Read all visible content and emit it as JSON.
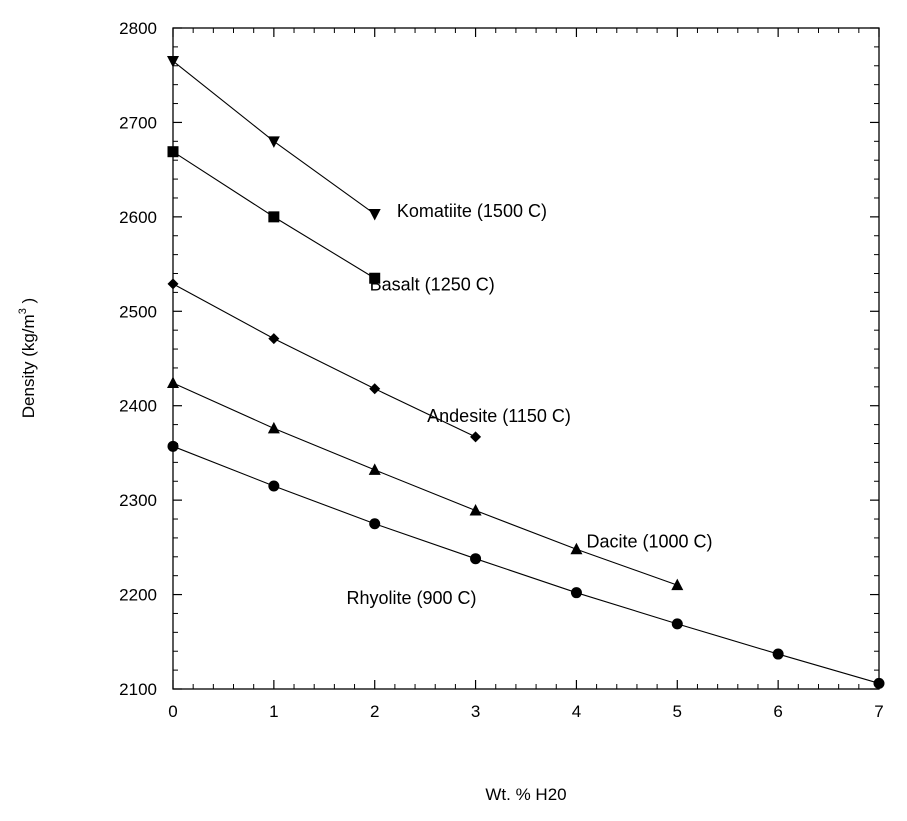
{
  "chart_data": {
    "type": "line",
    "title": "",
    "xlabel": "Wt. % H20",
    "ylabel_main": "Density (kg/m",
    "ylabel_sup": "3",
    "ylabel_close": " )",
    "xlim": [
      0,
      7
    ],
    "ylim": [
      2100,
      2800
    ],
    "x_ticks": [
      0,
      1,
      2,
      3,
      4,
      5,
      6,
      7
    ],
    "y_ticks": [
      2100,
      2200,
      2300,
      2400,
      2500,
      2600,
      2700,
      2800
    ],
    "grid": false,
    "series": [
      {
        "name": "Komatiite (1500 C)",
        "marker": "triangle-down",
        "x": [
          0,
          1,
          2
        ],
        "values": [
          2765,
          2680,
          2603
        ]
      },
      {
        "name": "Basalt (1250 C)",
        "marker": "square",
        "x": [
          0,
          1,
          2
        ],
        "values": [
          2669,
          2600,
          2535
        ]
      },
      {
        "name": "Andesite (1150 C)",
        "marker": "diamond",
        "x": [
          0,
          1,
          2,
          3
        ],
        "values": [
          2529,
          2471,
          2418,
          2367
        ]
      },
      {
        "name": "Dacite (1000 C)",
        "marker": "triangle-up",
        "x": [
          0,
          1,
          2,
          3,
          4,
          5
        ],
        "values": [
          2424,
          2376,
          2332,
          2289,
          2248,
          2210
        ]
      },
      {
        "name": "Rhyolite (900 C)",
        "marker": "circle",
        "x": [
          0,
          1,
          2,
          3,
          4,
          5,
          6,
          7
        ],
        "values": [
          2357,
          2315,
          2275,
          2238,
          2202,
          2169,
          2137,
          2106
        ]
      }
    ]
  }
}
